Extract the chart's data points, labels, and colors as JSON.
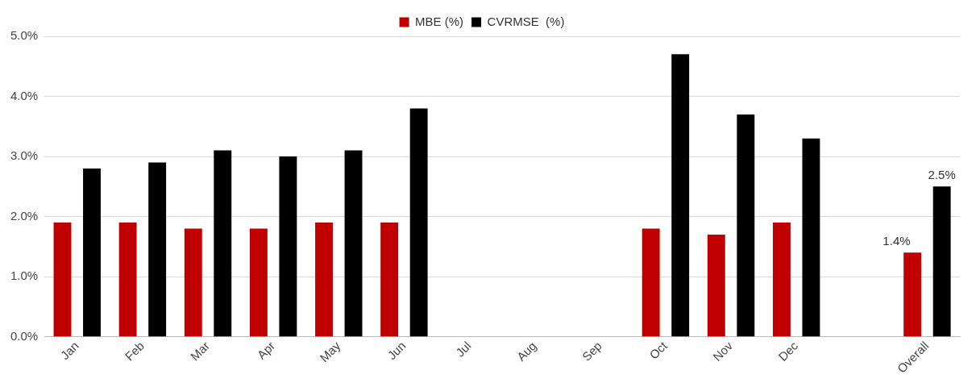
{
  "chart_data": {
    "type": "bar",
    "categories": [
      "Jan",
      "Feb",
      "Mar",
      "Apr",
      "May",
      "Jun",
      "Jul",
      "Aug",
      "Sep",
      "Oct",
      "Nov",
      "Dec",
      null,
      "Overall"
    ],
    "series": [
      {
        "name": "MBE (%)",
        "color": "#c00000",
        "values": [
          1.9,
          1.9,
          1.8,
          1.8,
          1.9,
          1.9,
          null,
          null,
          null,
          1.8,
          1.7,
          1.9,
          null,
          1.4
        ],
        "value_labels": [
          null,
          null,
          null,
          null,
          null,
          null,
          null,
          null,
          null,
          null,
          null,
          null,
          null,
          "1.4%"
        ]
      },
      {
        "name": "CVRMSE  (%)",
        "color": "#000000",
        "values": [
          2.8,
          2.9,
          3.1,
          3.0,
          3.1,
          3.8,
          null,
          null,
          null,
          4.7,
          3.7,
          3.3,
          null,
          2.5
        ],
        "value_labels": [
          null,
          null,
          null,
          null,
          null,
          null,
          null,
          null,
          null,
          null,
          null,
          null,
          null,
          "2.5%"
        ]
      }
    ],
    "ylim": [
      0,
      5
    ],
    "yticks": [
      {
        "value": 0,
        "label": "0.0%"
      },
      {
        "value": 1,
        "label": "1.0%"
      },
      {
        "value": 2,
        "label": "2.0%"
      },
      {
        "value": 3,
        "label": "3.0%"
      },
      {
        "value": 4,
        "label": "4.0%"
      },
      {
        "value": 5,
        "label": "5.0%"
      }
    ],
    "grid": "y",
    "legend": "top"
  }
}
